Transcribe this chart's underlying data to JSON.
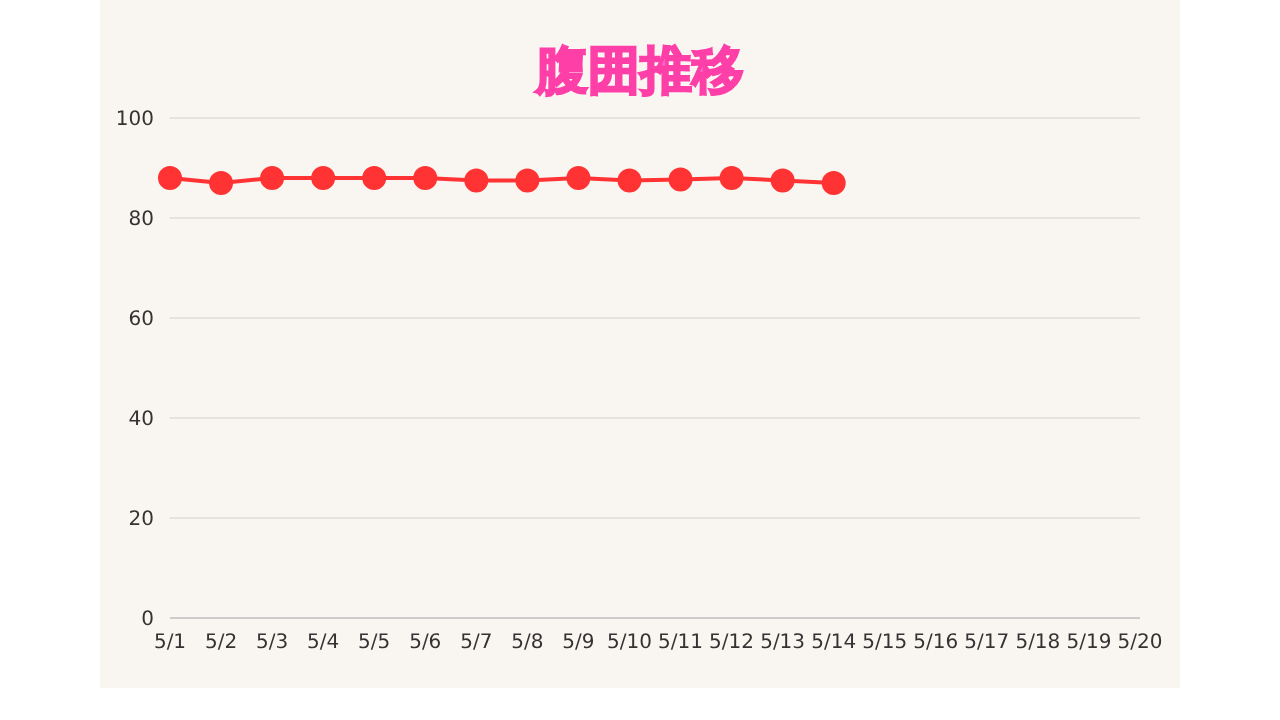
{
  "chart_data": {
    "type": "line",
    "title": "腹囲推移",
    "categories": [
      "5/1",
      "5/2",
      "5/3",
      "5/4",
      "5/5",
      "5/6",
      "5/7",
      "5/8",
      "5/9",
      "5/10",
      "5/11",
      "5/12",
      "5/13",
      "5/14",
      "5/15",
      "5/16",
      "5/17",
      "5/18",
      "5/19",
      "5/20"
    ],
    "series": [
      {
        "color": "#ff3333",
        "values": [
          88,
          87,
          88,
          88,
          88,
          88,
          87.5,
          87.5,
          88,
          87.5,
          87.7,
          88,
          87.5,
          87,
          null,
          null,
          null,
          null,
          null,
          null
        ]
      }
    ],
    "ylim": [
      0,
      100
    ],
    "yticks": [
      0,
      20,
      40,
      60,
      80,
      100
    ],
    "grid": "y",
    "marker": "circle"
  }
}
